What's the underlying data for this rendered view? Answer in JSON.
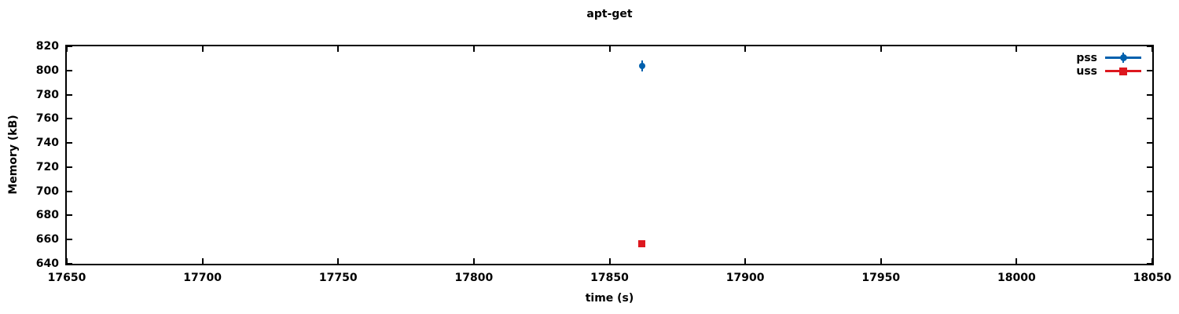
{
  "chart_data": {
    "type": "scatter",
    "title": "apt-get",
    "xlabel": "time (s)",
    "ylabel": "Memory (kB)",
    "xlim": [
      17650,
      18050
    ],
    "ylim": [
      640,
      820
    ],
    "xticks": [
      17650,
      17700,
      17750,
      17800,
      17850,
      17900,
      17950,
      18000,
      18050
    ],
    "yticks": [
      640,
      660,
      680,
      700,
      720,
      740,
      760,
      780,
      800,
      820
    ],
    "grid": false,
    "tick_style": "inward-mirrored",
    "legend_position": "top-right-inside",
    "background_color": "#ffffff",
    "axis_color": "#000000",
    "series": [
      {
        "name": "pss",
        "color": "#0060ad",
        "marker": "circle-errorbar",
        "points": [
          {
            "x": 17862,
            "y": 804
          }
        ]
      },
      {
        "name": "uss",
        "color": "#dd181f",
        "marker": "square",
        "points": [
          {
            "x": 17862,
            "y": 656
          }
        ]
      }
    ]
  }
}
